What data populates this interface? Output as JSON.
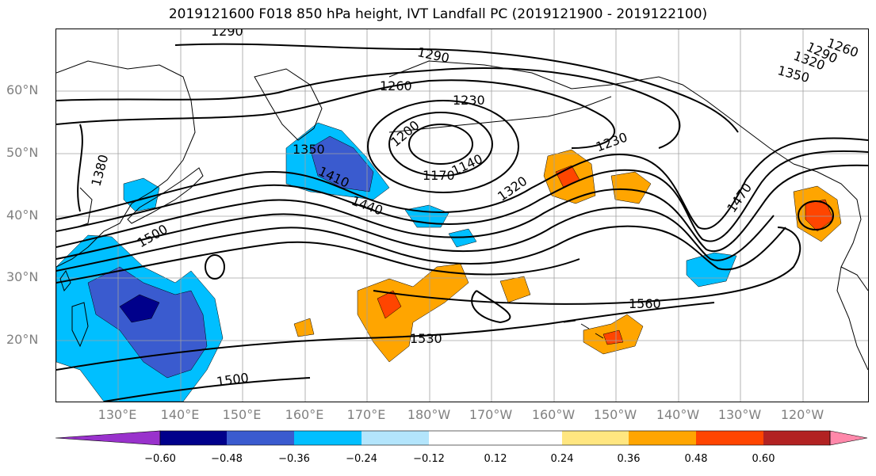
{
  "title": "2019121600 F018 850 hPa height, IVT Landfall PC (2019121900 - 2019122100)",
  "lat_labels": [
    "60°N",
    "50°N",
    "40°N",
    "30°N",
    "20°N"
  ],
  "lon_labels": [
    "130°E",
    "140°E",
    "150°E",
    "160°E",
    "170°E",
    "180°W",
    "170°W",
    "160°W",
    "150°W",
    "140°W",
    "130°W",
    "120°W"
  ],
  "contour_labels": [
    "1290",
    "1290",
    "1260",
    "1230",
    "1200",
    "1140",
    "1170",
    "1320",
    "1230",
    "1350",
    "1410",
    "1440",
    "1380",
    "1500",
    "1470",
    "1560",
    "1530",
    "1500",
    "1260",
    "1290",
    "1320",
    "1350"
  ],
  "colorbar": {
    "ticks": [
      "−0.60",
      "−0.48",
      "−0.36",
      "−0.24",
      "−0.12",
      "0.12",
      "0.24",
      "0.36",
      "0.48",
      "0.60"
    ],
    "colors": [
      "#9932CC",
      "#00008B",
      "#3A5BCF",
      "#00BFFF",
      "#B3E5FC",
      "#FFFFFF",
      "#FFE680",
      "#FFA500",
      "#FF4500",
      "#B22222",
      "#FF88AA"
    ]
  }
}
